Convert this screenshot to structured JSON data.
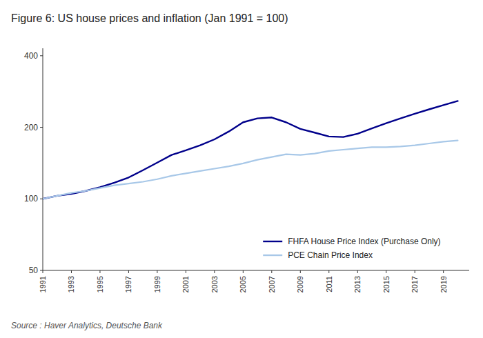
{
  "chart_data": {
    "type": "line",
    "title": "Figure 6: US house prices and inflation (Jan 1991 = 100)",
    "source": "Source : Haver Analytics, Deutsche Bank",
    "x": [
      1991,
      1992,
      1993,
      1994,
      1995,
      1996,
      1997,
      1998,
      1999,
      2000,
      2001,
      2002,
      2003,
      2004,
      2005,
      2006,
      2007,
      2008,
      2009,
      2010,
      2011,
      2012,
      2013,
      2014,
      2015,
      2016,
      2017,
      2018,
      2019,
      2020
    ],
    "series": [
      {
        "name": "FHFA House Price Index (Purchase Only)",
        "color": "#00008B",
        "values": [
          100,
          103,
          105,
          108,
          112,
          117,
          123,
          132,
          142,
          153,
          160,
          168,
          178,
          192,
          210,
          218,
          220,
          210,
          197,
          190,
          183,
          182,
          188,
          198,
          208,
          218,
          228,
          238,
          248,
          258
        ]
      },
      {
        "name": "PCE Chain Price Index",
        "color": "#A8C8E8",
        "values": [
          100,
          103,
          106,
          108,
          111,
          114,
          116,
          118,
          121,
          125,
          128,
          131,
          134,
          137,
          141,
          146,
          150,
          154,
          153,
          155,
          159,
          161,
          163,
          165,
          165,
          166,
          168,
          171,
          174,
          176
        ]
      }
    ],
    "xlim": [
      1991,
      2020.8
    ],
    "xticks": [
      1991,
      1993,
      1995,
      1997,
      1999,
      2001,
      2003,
      2005,
      2007,
      2009,
      2011,
      2013,
      2015,
      2017,
      2019
    ],
    "ylim": [
      50,
      430
    ],
    "yticks": [
      50,
      100,
      200,
      400
    ],
    "log": "y",
    "legend": "lower right",
    "grid": false
  }
}
